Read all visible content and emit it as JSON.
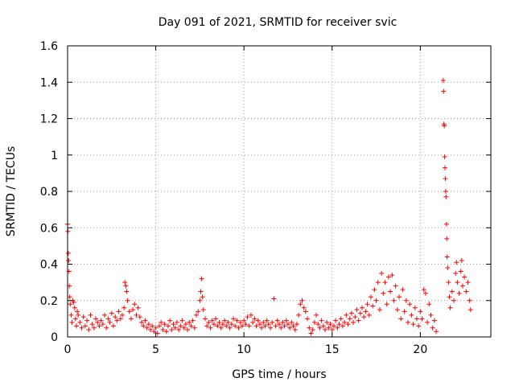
{
  "chart_data": {
    "type": "scatter",
    "title": "Day 091 of 2021, SRMTID for receiver svic",
    "xlabel": "GPS time / hours",
    "ylabel": "SRMTID / TECUs",
    "xlim": [
      0,
      24
    ],
    "ylim": [
      0,
      1.6
    ],
    "xticks": [
      0,
      5,
      10,
      15,
      20
    ],
    "yticks": [
      0,
      0.2,
      0.4,
      0.6,
      0.8,
      1,
      1.2,
      1.4,
      1.6
    ],
    "grid": true,
    "marker": "+",
    "color": "#ff0000",
    "series": [
      {
        "name": "SRMTID",
        "points": [
          [
            0.0,
            0.62
          ],
          [
            0.02,
            0.58
          ],
          [
            0.04,
            0.46
          ],
          [
            0.06,
            0.42
          ],
          [
            0.08,
            0.36
          ],
          [
            0.1,
            0.28
          ],
          [
            0.12,
            0.22
          ],
          [
            0.15,
            0.18
          ],
          [
            0.2,
            0.12
          ],
          [
            0.25,
            0.08
          ],
          [
            0.3,
            0.2
          ],
          [
            0.35,
            0.19
          ],
          [
            0.4,
            0.16
          ],
          [
            0.45,
            0.1
          ],
          [
            0.5,
            0.06
          ],
          [
            0.55,
            0.14
          ],
          [
            0.6,
            0.12
          ],
          [
            0.7,
            0.08
          ],
          [
            0.8,
            0.05
          ],
          [
            0.9,
            0.11
          ],
          [
            1.0,
            0.06
          ],
          [
            1.1,
            0.09
          ],
          [
            1.2,
            0.04
          ],
          [
            1.3,
            0.12
          ],
          [
            1.4,
            0.07
          ],
          [
            1.5,
            0.05
          ],
          [
            1.6,
            0.1
          ],
          [
            1.7,
            0.08
          ],
          [
            1.8,
            0.06
          ],
          [
            1.9,
            0.09
          ],
          [
            2.0,
            0.07
          ],
          [
            2.1,
            0.12
          ],
          [
            2.2,
            0.05
          ],
          [
            2.3,
            0.1
          ],
          [
            2.4,
            0.08
          ],
          [
            2.5,
            0.13
          ],
          [
            2.6,
            0.06
          ],
          [
            2.7,
            0.11
          ],
          [
            2.8,
            0.09
          ],
          [
            2.9,
            0.14
          ],
          [
            3.0,
            0.1
          ],
          [
            3.1,
            0.12
          ],
          [
            3.2,
            0.16
          ],
          [
            3.25,
            0.3
          ],
          [
            3.3,
            0.28
          ],
          [
            3.35,
            0.25
          ],
          [
            3.4,
            0.2
          ],
          [
            3.5,
            0.14
          ],
          [
            3.6,
            0.1
          ],
          [
            3.7,
            0.15
          ],
          [
            3.8,
            0.18
          ],
          [
            3.9,
            0.12
          ],
          [
            4.0,
            0.16
          ],
          [
            4.1,
            0.11
          ],
          [
            4.2,
            0.08
          ],
          [
            4.3,
            0.06
          ],
          [
            4.4,
            0.09
          ],
          [
            4.5,
            0.05
          ],
          [
            4.6,
            0.07
          ],
          [
            4.7,
            0.04
          ],
          [
            4.8,
            0.06
          ],
          [
            4.9,
            0.03
          ],
          [
            5.0,
            0.05
          ],
          [
            5.1,
            0.02
          ],
          [
            5.2,
            0.06
          ],
          [
            5.3,
            0.08
          ],
          [
            5.4,
            0.04
          ],
          [
            5.5,
            0.07
          ],
          [
            5.6,
            0.03
          ],
          [
            5.7,
            0.06
          ],
          [
            5.8,
            0.09
          ],
          [
            5.9,
            0.04
          ],
          [
            6.0,
            0.07
          ],
          [
            6.1,
            0.05
          ],
          [
            6.2,
            0.08
          ],
          [
            6.3,
            0.04
          ],
          [
            6.4,
            0.06
          ],
          [
            6.5,
            0.09
          ],
          [
            6.6,
            0.05
          ],
          [
            6.7,
            0.07
          ],
          [
            6.8,
            0.04
          ],
          [
            6.9,
            0.08
          ],
          [
            7.0,
            0.06
          ],
          [
            7.1,
            0.09
          ],
          [
            7.2,
            0.05
          ],
          [
            7.3,
            0.12
          ],
          [
            7.4,
            0.14
          ],
          [
            7.5,
            0.2
          ],
          [
            7.55,
            0.25
          ],
          [
            7.6,
            0.32
          ],
          [
            7.65,
            0.22
          ],
          [
            7.7,
            0.15
          ],
          [
            7.8,
            0.1
          ],
          [
            7.9,
            0.06
          ],
          [
            8.0,
            0.08
          ],
          [
            8.1,
            0.05
          ],
          [
            8.2,
            0.09
          ],
          [
            8.3,
            0.07
          ],
          [
            8.4,
            0.1
          ],
          [
            8.5,
            0.06
          ],
          [
            8.6,
            0.08
          ],
          [
            8.7,
            0.05
          ],
          [
            8.8,
            0.07
          ],
          [
            8.9,
            0.09
          ],
          [
            9.0,
            0.06
          ],
          [
            9.1,
            0.08
          ],
          [
            9.2,
            0.05
          ],
          [
            9.3,
            0.07
          ],
          [
            9.4,
            0.1
          ],
          [
            9.5,
            0.06
          ],
          [
            9.6,
            0.09
          ],
          [
            9.7,
            0.05
          ],
          [
            9.8,
            0.08
          ],
          [
            9.9,
            0.06
          ],
          [
            10.0,
            0.09
          ],
          [
            10.1,
            0.07
          ],
          [
            10.2,
            0.11
          ],
          [
            10.3,
            0.06
          ],
          [
            10.4,
            0.12
          ],
          [
            10.5,
            0.08
          ],
          [
            10.6,
            0.1
          ],
          [
            10.7,
            0.06
          ],
          [
            10.8,
            0.09
          ],
          [
            10.9,
            0.07
          ],
          [
            11.0,
            0.05
          ],
          [
            11.1,
            0.08
          ],
          [
            11.2,
            0.06
          ],
          [
            11.3,
            0.09
          ],
          [
            11.4,
            0.07
          ],
          [
            11.5,
            0.05
          ],
          [
            11.6,
            0.08
          ],
          [
            11.7,
            0.21
          ],
          [
            11.8,
            0.06
          ],
          [
            11.9,
            0.09
          ],
          [
            12.0,
            0.07
          ],
          [
            12.1,
            0.05
          ],
          [
            12.2,
            0.08
          ],
          [
            12.3,
            0.06
          ],
          [
            12.4,
            0.09
          ],
          [
            12.5,
            0.07
          ],
          [
            12.6,
            0.05
          ],
          [
            12.7,
            0.08
          ],
          [
            12.8,
            0.06
          ],
          [
            12.9,
            0.04
          ],
          [
            13.0,
            0.07
          ],
          [
            13.1,
            0.12
          ],
          [
            13.2,
            0.18
          ],
          [
            13.3,
            0.2
          ],
          [
            13.4,
            0.16
          ],
          [
            13.5,
            0.14
          ],
          [
            13.6,
            0.1
          ],
          [
            13.7,
            0.05
          ],
          [
            13.8,
            0.02
          ],
          [
            13.9,
            0.04
          ],
          [
            14.0,
            0.08
          ],
          [
            14.1,
            0.12
          ],
          [
            14.2,
            0.07
          ],
          [
            14.3,
            0.05
          ],
          [
            14.4,
            0.09
          ],
          [
            14.5,
            0.06
          ],
          [
            14.6,
            0.04
          ],
          [
            14.7,
            0.08
          ],
          [
            14.8,
            0.05
          ],
          [
            14.9,
            0.07
          ],
          [
            15.0,
            0.04
          ],
          [
            15.1,
            0.06
          ],
          [
            15.2,
            0.09
          ],
          [
            15.3,
            0.05
          ],
          [
            15.4,
            0.07
          ],
          [
            15.5,
            0.1
          ],
          [
            15.6,
            0.06
          ],
          [
            15.7,
            0.08
          ],
          [
            15.8,
            0.12
          ],
          [
            15.9,
            0.07
          ],
          [
            16.0,
            0.1
          ],
          [
            16.1,
            0.13
          ],
          [
            16.2,
            0.08
          ],
          [
            16.3,
            0.11
          ],
          [
            16.4,
            0.15
          ],
          [
            16.5,
            0.09
          ],
          [
            16.6,
            0.13
          ],
          [
            16.7,
            0.16
          ],
          [
            16.8,
            0.11
          ],
          [
            16.9,
            0.14
          ],
          [
            17.0,
            0.18
          ],
          [
            17.1,
            0.12
          ],
          [
            17.2,
            0.22
          ],
          [
            17.3,
            0.17
          ],
          [
            17.4,
            0.26
          ],
          [
            17.5,
            0.2
          ],
          [
            17.6,
            0.3
          ],
          [
            17.7,
            0.15
          ],
          [
            17.8,
            0.35
          ],
          [
            17.9,
            0.24
          ],
          [
            18.0,
            0.3
          ],
          [
            18.1,
            0.18
          ],
          [
            18.2,
            0.33
          ],
          [
            18.3,
            0.25
          ],
          [
            18.4,
            0.34
          ],
          [
            18.5,
            0.2
          ],
          [
            18.6,
            0.28
          ],
          [
            18.7,
            0.15
          ],
          [
            18.8,
            0.22
          ],
          [
            18.9,
            0.1
          ],
          [
            19.0,
            0.26
          ],
          [
            19.1,
            0.14
          ],
          [
            19.2,
            0.2
          ],
          [
            19.3,
            0.08
          ],
          [
            19.4,
            0.18
          ],
          [
            19.5,
            0.12
          ],
          [
            19.6,
            0.07
          ],
          [
            19.7,
            0.16
          ],
          [
            19.8,
            0.1
          ],
          [
            19.9,
            0.06
          ],
          [
            20.0,
            0.14
          ],
          [
            20.1,
            0.1
          ],
          [
            20.2,
            0.26
          ],
          [
            20.3,
            0.24
          ],
          [
            20.4,
            0.08
          ],
          [
            20.5,
            0.18
          ],
          [
            20.6,
            0.12
          ],
          [
            20.7,
            0.05
          ],
          [
            20.8,
            0.09
          ],
          [
            20.9,
            0.03
          ],
          [
            21.3,
            1.41
          ],
          [
            21.32,
            1.35
          ],
          [
            21.34,
            1.17
          ],
          [
            21.36,
            1.16
          ],
          [
            21.38,
            0.99
          ],
          [
            21.4,
            0.93
          ],
          [
            21.42,
            0.87
          ],
          [
            21.44,
            0.8
          ],
          [
            21.46,
            0.77
          ],
          [
            21.48,
            0.62
          ],
          [
            21.5,
            0.54
          ],
          [
            21.52,
            0.44
          ],
          [
            21.55,
            0.38
          ],
          [
            21.6,
            0.3
          ],
          [
            21.65,
            0.22
          ],
          [
            21.7,
            0.16
          ],
          [
            21.8,
            0.25
          ],
          [
            21.9,
            0.2
          ],
          [
            22.0,
            0.35
          ],
          [
            22.05,
            0.41
          ],
          [
            22.1,
            0.3
          ],
          [
            22.2,
            0.24
          ],
          [
            22.3,
            0.36
          ],
          [
            22.35,
            0.42
          ],
          [
            22.4,
            0.28
          ],
          [
            22.5,
            0.33
          ],
          [
            22.6,
            0.25
          ],
          [
            22.7,
            0.3
          ],
          [
            22.8,
            0.2
          ],
          [
            22.85,
            0.15
          ]
        ]
      }
    ]
  }
}
